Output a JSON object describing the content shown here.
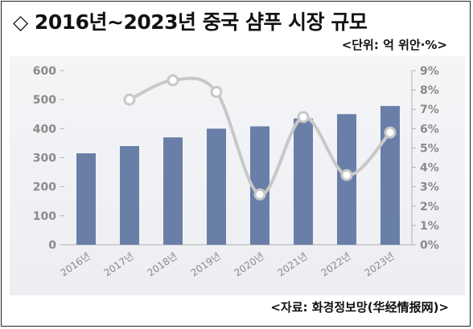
{
  "title": "◇ 2016년~2023년 중국 샴푸 시장 규모",
  "unit_label": "<단위: 억 위안·%>",
  "source_label": "<자료: 화경정보망(华经情报网)>",
  "colors": {
    "bar": "#6a7fa8",
    "line": "#c8c8c8",
    "marker_fill": "#ffffff",
    "axis_text": "#8a8a8a"
  },
  "chart_data": {
    "type": "bar",
    "categories": [
      "2016년",
      "2017년",
      "2018년",
      "2019년",
      "2020년",
      "2021년",
      "2022년",
      "2023년"
    ],
    "series": [
      {
        "axis": "left",
        "type": "bar",
        "values": [
          315,
          340,
          370,
          400,
          408,
          435,
          450,
          478
        ]
      },
      {
        "axis": "right",
        "type": "line",
        "values": [
          null,
          7.5,
          8.5,
          7.9,
          2.6,
          6.6,
          3.6,
          5.8
        ]
      }
    ],
    "ylim": [
      0,
      600
    ],
    "y_ticks": [
      "0",
      "100",
      "200",
      "300",
      "400",
      "500",
      "600"
    ],
    "y2lim": [
      0,
      9
    ],
    "y2_ticks": [
      "0%",
      "1%",
      "2%",
      "3%",
      "4%",
      "5%",
      "6%",
      "7%",
      "8%",
      "9%"
    ],
    "legend": "none",
    "grid": false
  }
}
